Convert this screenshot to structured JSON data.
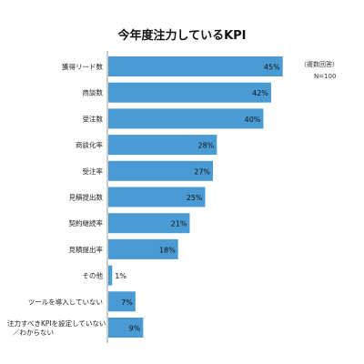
{
  "title": "今年度注力しているKPI",
  "notes": {
    "answer_type": "（複数回答）",
    "sample": "N=100"
  },
  "chart_data": {
    "type": "bar",
    "orientation": "horizontal",
    "title": "今年度注力しているKPI",
    "categories": [
      "獲得リード数",
      "商談数",
      "受注数",
      "商談化率",
      "受注率",
      "見積提出数",
      "契約継続率",
      "見積提出率",
      "その他",
      "ツールを導入していない",
      [
        "注力すべきKPIを設定していない",
        "／わからない"
      ]
    ],
    "values": [
      45,
      42,
      40,
      28,
      27,
      25,
      21,
      18,
      1,
      7,
      9
    ],
    "value_labels": [
      "45%",
      "42%",
      "40%",
      "28%",
      "27%",
      "25%",
      "21%",
      "18%",
      "1%",
      "7%",
      "9%"
    ],
    "unit": "%",
    "xlim": [
      0,
      100
    ],
    "grid": false,
    "legend": "none",
    "bar_color": "#4a9bd4",
    "axis_color": "#9a9a9a"
  }
}
